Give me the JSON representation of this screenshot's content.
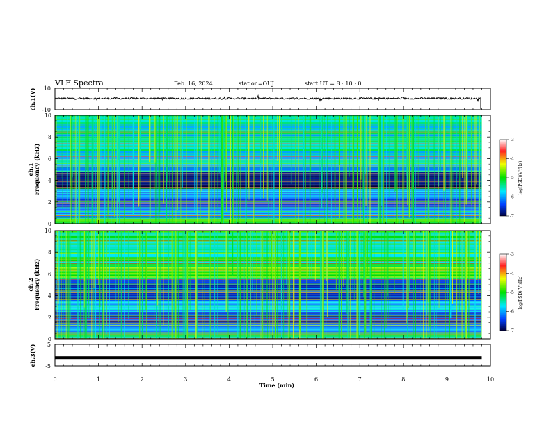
{
  "header": {
    "title": "VLF Spectra",
    "date": "Feb. 16, 2024",
    "station": "station=OUJ",
    "start": "start  UT =   8 : 10 : 0"
  },
  "colorbar": {
    "label": "log(PSD)(V²/Hz)",
    "ticks": [
      "-3",
      "-4",
      "-5",
      "-6",
      "-7"
    ]
  },
  "chart_data": [
    {
      "type": "line",
      "name": "ch1-waveform",
      "ylabel": "ch.1(V)",
      "ylim": [
        -10,
        10
      ],
      "ytick_labels": [
        "10",
        "-10"
      ],
      "xlim": [
        0,
        10
      ],
      "level": 0.5,
      "grid": false
    },
    {
      "type": "heatmap",
      "name": "ch1-spectrogram",
      "ylabel": "ch.1\nFrequency (kHz)",
      "xlim": [
        0,
        10
      ],
      "ylim": [
        0,
        10
      ],
      "ytick_labels": [
        "0",
        "2",
        "4",
        "6",
        "8",
        "10"
      ],
      "zlim": [
        -7,
        -3
      ],
      "bands": [
        {
          "from": 0,
          "to": 0.5,
          "z": -5.2
        },
        {
          "from": 0.5,
          "to": 1.5,
          "z": -6.0
        },
        {
          "from": 1.5,
          "to": 2.3,
          "z": -6.4
        },
        {
          "from": 2.3,
          "to": 3.2,
          "z": -6.1
        },
        {
          "from": 3.2,
          "to": 4.8,
          "z": -6.8
        },
        {
          "from": 4.8,
          "to": 5.4,
          "z": -6.0
        },
        {
          "from": 5.4,
          "to": 6.5,
          "z": -5.8
        },
        {
          "from": 6.5,
          "to": 10,
          "z": -5.6
        }
      ]
    },
    {
      "type": "heatmap",
      "name": "ch2-spectrogram",
      "ylabel": "ch.2\nFrequency (kHz)",
      "xlim": [
        0,
        10
      ],
      "ylim": [
        0,
        10
      ],
      "ytick_labels": [
        "0",
        "2",
        "4",
        "6",
        "8",
        "10"
      ],
      "zlim": [
        -7,
        -3
      ],
      "bands": [
        {
          "from": 0,
          "to": 0.5,
          "z": -5.4
        },
        {
          "from": 0.5,
          "to": 1.5,
          "z": -6.2
        },
        {
          "from": 1.5,
          "to": 2.5,
          "z": -6.5
        },
        {
          "from": 2.5,
          "to": 3.5,
          "z": -5.9
        },
        {
          "from": 3.5,
          "to": 5.5,
          "z": -6.4
        },
        {
          "from": 5.5,
          "to": 7.0,
          "z": -5.0
        },
        {
          "from": 7.0,
          "to": 10,
          "z": -5.3
        }
      ]
    },
    {
      "type": "line",
      "name": "ch3-waveform",
      "ylabel": "ch.3(V)",
      "ylim": [
        -5,
        5
      ],
      "ytick_labels": [
        "5",
        "-5"
      ],
      "xlim": [
        0,
        10
      ],
      "level": -1.2,
      "grid": false
    }
  ],
  "xaxis": {
    "label": "Time (min)",
    "ticks": [
      "0",
      "1",
      "2",
      "3",
      "4",
      "5",
      "6",
      "7",
      "8",
      "9",
      "10"
    ],
    "xlim": [
      0,
      10
    ]
  }
}
